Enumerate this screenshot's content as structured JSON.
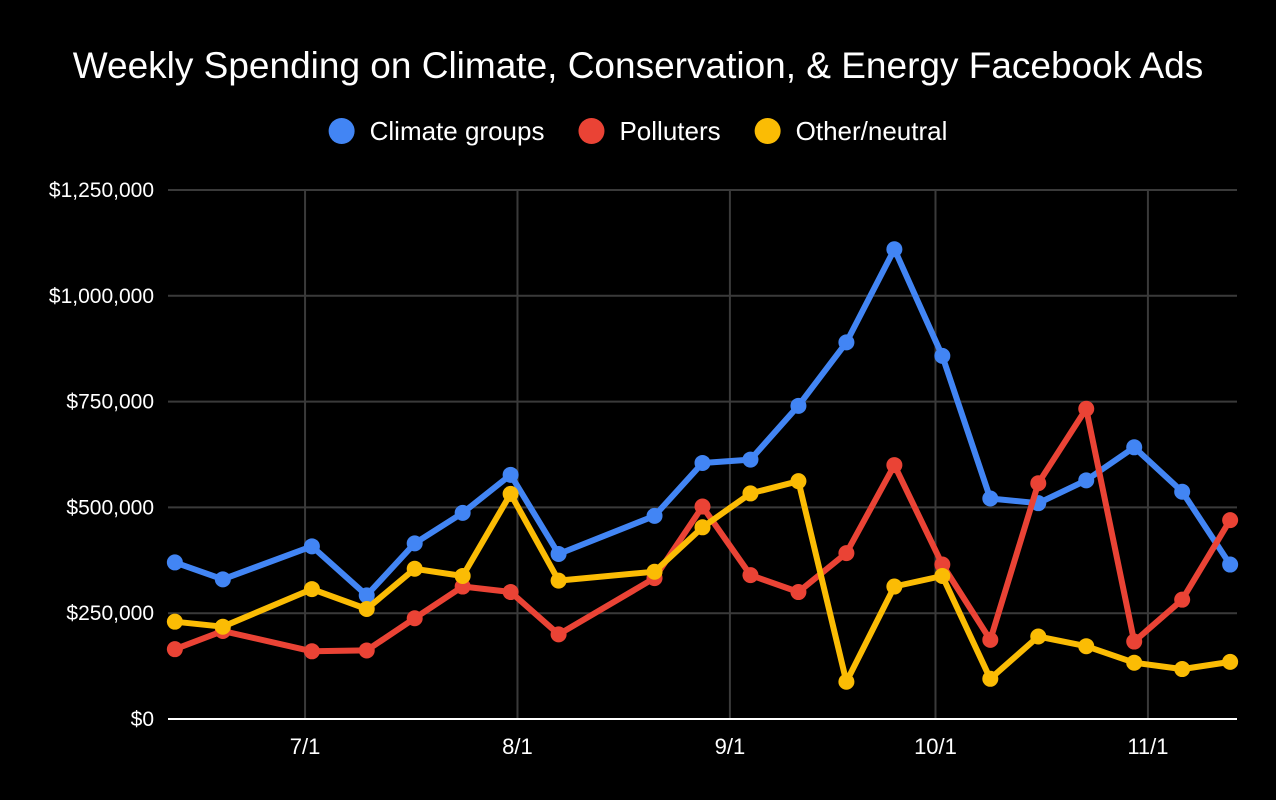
{
  "chart_data": {
    "type": "line",
    "title": "Weekly Spending on Climate, Conservation, & Energy Facebook Ads",
    "xlabel": "",
    "ylabel": "",
    "ylim": [
      0,
      1250000
    ],
    "y_ticks": [
      0,
      250000,
      500000,
      750000,
      1000000,
      1250000
    ],
    "y_tick_labels": [
      "$0",
      "$250,000",
      "$500,000",
      "$750,000",
      "$1,000,000",
      "$1,250,000"
    ],
    "x_ticks": [
      {
        "label": "7/1",
        "date": "2020-07-01"
      },
      {
        "label": "8/1",
        "date": "2020-08-01"
      },
      {
        "label": "9/1",
        "date": "2020-09-01"
      },
      {
        "label": "10/1",
        "date": "2020-10-01"
      },
      {
        "label": "11/1",
        "date": "2020-11-01"
      }
    ],
    "x_range": [
      "2020-06-11",
      "2020-11-14"
    ],
    "grid": true,
    "legend_position": "top",
    "x": [
      "2020-06-12",
      "2020-06-19",
      "2020-07-02",
      "2020-07-10",
      "2020-07-17",
      "2020-07-24",
      "2020-07-31",
      "2020-08-07",
      "2020-08-21",
      "2020-08-28",
      "2020-09-04",
      "2020-09-11",
      "2020-09-18",
      "2020-09-25",
      "2020-10-02",
      "2020-10-09",
      "2020-10-16",
      "2020-10-23",
      "2020-10-30",
      "2020-11-06",
      "2020-11-13"
    ],
    "series": [
      {
        "name": "Climate groups",
        "color": "#4285f4",
        "values": [
          370000,
          330000,
          408000,
          292000,
          415000,
          487000,
          577000,
          390000,
          480000,
          605000,
          613000,
          740000,
          890000,
          1110000,
          858000,
          521000,
          510000,
          564000,
          642000,
          537000,
          365000
        ]
      },
      {
        "name": "Polluters",
        "color": "#ea4335",
        "values": [
          165000,
          208000,
          160000,
          162000,
          238000,
          313000,
          300000,
          200000,
          333000,
          502000,
          340000,
          300000,
          392000,
          600000,
          365000,
          187000,
          557000,
          733000,
          183000,
          282000,
          470000
        ]
      },
      {
        "name": "Other/neutral",
        "color": "#fbbc04",
        "values": [
          230000,
          218000,
          307000,
          260000,
          355000,
          338000,
          532000,
          327000,
          348000,
          453000,
          533000,
          562000,
          88000,
          313000,
          338000,
          95000,
          195000,
          172000,
          133000,
          118000,
          135000
        ]
      }
    ]
  }
}
